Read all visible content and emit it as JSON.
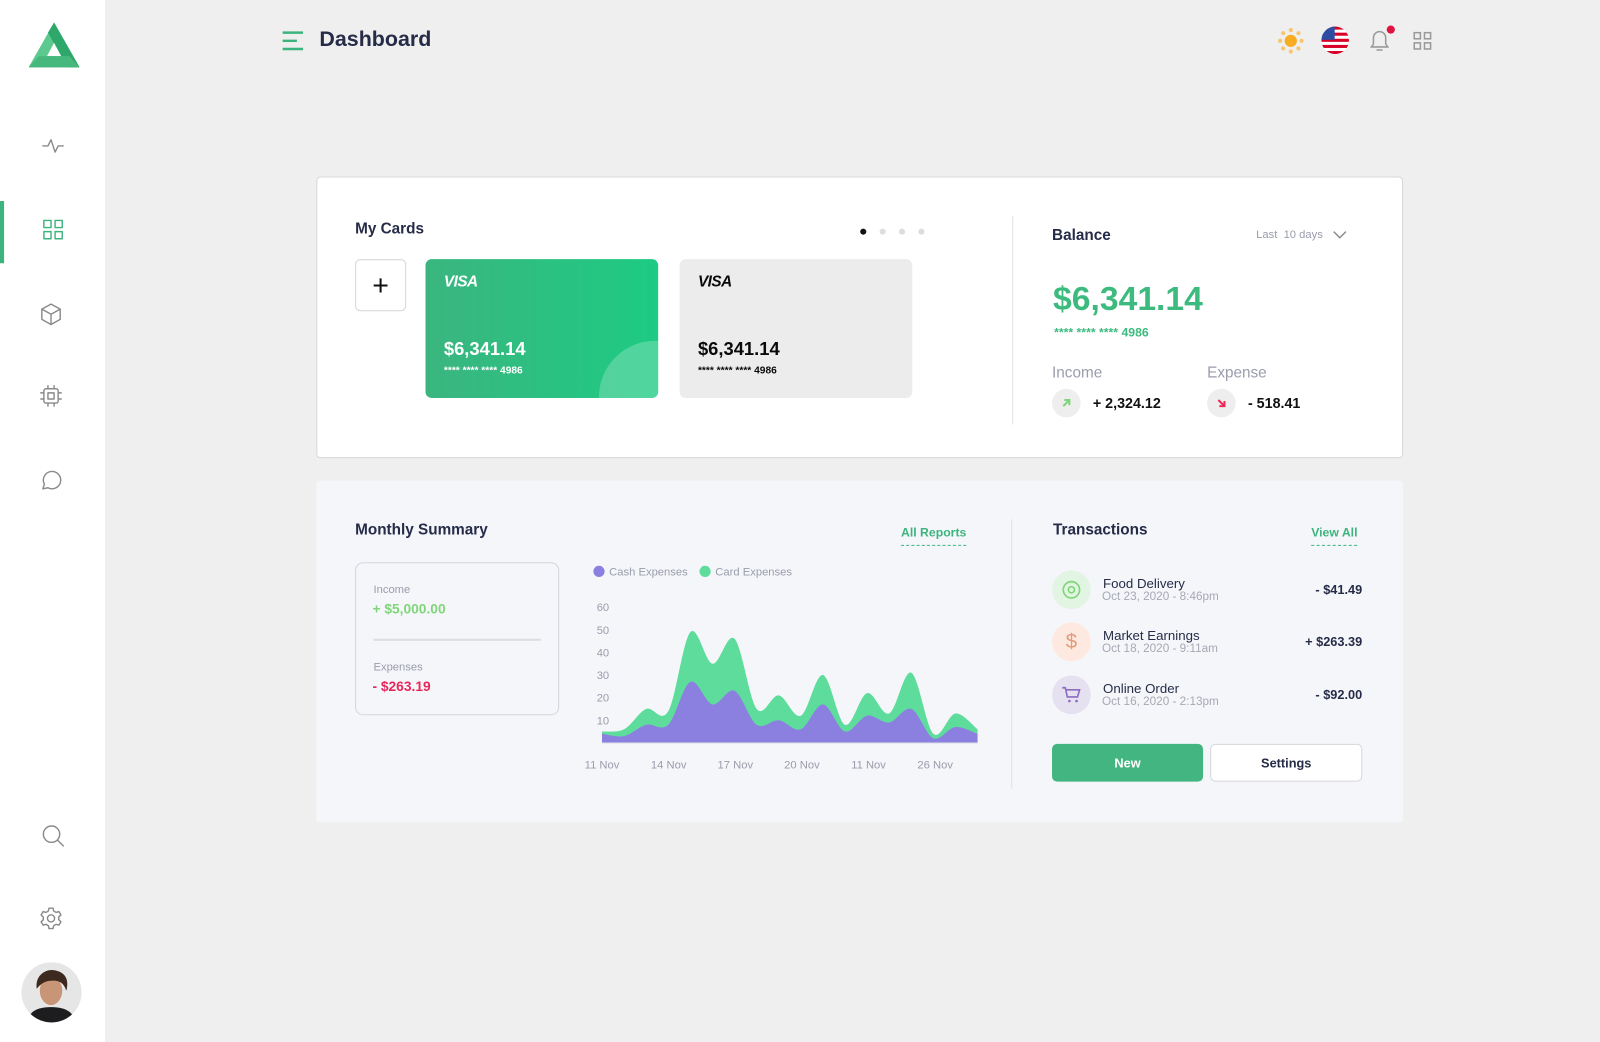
{
  "header": {
    "title": "Dashboard",
    "notification_dot_color": "#e0123f"
  },
  "sidebar": {
    "items": [
      "activity-icon",
      "dashboard-icon",
      "box-icon",
      "chip-icon",
      "chat-icon",
      "search-icon",
      "settings-icon"
    ],
    "active": "dashboard",
    "accent": "#3db47e"
  },
  "my_cards": {
    "title": "My Cards",
    "pager_total": 4,
    "pager_active": 1,
    "add_label": "+",
    "cards": [
      {
        "brand": "VISA",
        "amount": "$6,341.14",
        "number": "**** **** **** 4986",
        "style": "green"
      },
      {
        "brand": "VISA",
        "amount": "$6,341.14",
        "number": "**** **** **** 4986",
        "style": "grey"
      }
    ]
  },
  "balance": {
    "title": "Balance",
    "period": "Last  10 days",
    "amount": "$6,341.14",
    "number": "**** **** **** 4986",
    "income_label": "Income",
    "income_value": "+ 2,324.12",
    "expense_label": "Expense",
    "expense_value": "- 518.41"
  },
  "monthly_summary": {
    "title": "Monthly Summary",
    "all_reports": "All Reports",
    "income_label": "Income",
    "income_value": "+ $5,000.00",
    "expenses_label": "Expenses",
    "expenses_value": "- $263.19"
  },
  "chart_data": {
    "type": "area",
    "stacked": true,
    "x_labels": [
      "11 Nov",
      "14 Nov",
      "17 Nov",
      "20 Nov",
      "11 Nov",
      "26 Nov"
    ],
    "y_ticks": [
      "10",
      "20",
      "30",
      "40",
      "50",
      "60"
    ],
    "ylim": [
      0,
      60
    ],
    "legend": "top-left",
    "series": [
      {
        "name": "Cash Expenses",
        "color": "#8b80e0",
        "values": [
          4,
          3,
          8,
          8,
          27,
          17,
          23,
          8,
          10,
          6,
          17,
          5,
          12,
          9,
          15,
          2,
          7,
          4
        ]
      },
      {
        "name": "Card Expenses",
        "color": "#5edc9c",
        "values": [
          1,
          3,
          7,
          6,
          22,
          18,
          23,
          7,
          11,
          6,
          13,
          3,
          10,
          4,
          16,
          2,
          6,
          2
        ]
      }
    ]
  },
  "transactions": {
    "title": "Transactions",
    "view_all": "View All",
    "items": [
      {
        "title": "Food Delivery",
        "date": "Oct 23, 2020 - 8:46pm",
        "amount": "- $41.49",
        "icon": "target-icon"
      },
      {
        "title": "Market Earnings",
        "date": "Oct 18, 2020 - 9:11am",
        "amount": "+ $263.39",
        "icon": "dollar-icon"
      },
      {
        "title": "Online Order",
        "date": "Oct 16, 2020 - 2:13pm",
        "amount": "- $92.00",
        "icon": "cart-icon"
      }
    ],
    "new_label": "New",
    "settings_label": "Settings"
  }
}
